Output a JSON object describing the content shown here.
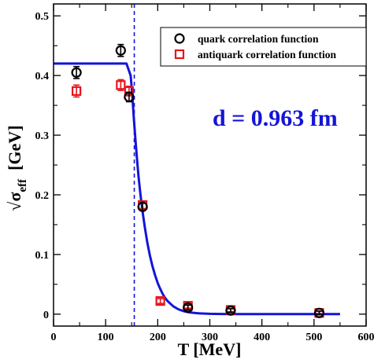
{
  "chart_data": {
    "type": "scatter",
    "xlabel": "T [MeV]",
    "ylabel": {
      "prefix": "√σ",
      "subscript": "eff",
      "suffix": "  [GeV]"
    },
    "xlim": [
      0,
      600
    ],
    "ylim": [
      -0.02,
      0.52
    ],
    "xticks": [
      0,
      100,
      200,
      300,
      400,
      500,
      600
    ],
    "yticks": [
      0,
      0.1,
      0.2,
      0.3,
      0.4,
      0.5
    ],
    "xtick_labels": [
      "0",
      "100",
      "200",
      "300",
      "400",
      "500",
      "600"
    ],
    "ytick_labels": [
      "0",
      "0.1",
      "0.2",
      "0.3",
      "0.4",
      "0.5"
    ],
    "grid": false,
    "legend_position": "top-right",
    "annotation": "d = 0.963 fm",
    "colors": {
      "quark": "#000000",
      "antiquark": "#e8141b",
      "fit": "#1414d8",
      "vline": "#1414d8"
    },
    "vertical_line_x": 155,
    "series": [
      {
        "name": "quark correlation function",
        "marker": "circle",
        "points": [
          {
            "x": 44,
            "y": 0.405,
            "err": 0.01
          },
          {
            "x": 129,
            "y": 0.442,
            "err": 0.01
          },
          {
            "x": 145,
            "y": 0.364,
            "err": 0.008
          },
          {
            "x": 171,
            "y": 0.18,
            "err": 0.006
          },
          {
            "x": 258,
            "y": 0.011,
            "err": 0.004
          },
          {
            "x": 340,
            "y": 0.006,
            "err": 0.003
          },
          {
            "x": 510,
            "y": 0.002,
            "err": 0.003
          }
        ]
      },
      {
        "name": "antiquark correlation function",
        "marker": "square",
        "points": [
          {
            "x": 44,
            "y": 0.374,
            "err": 0.01
          },
          {
            "x": 129,
            "y": 0.384,
            "err": 0.009
          },
          {
            "x": 145,
            "y": 0.374,
            "err": 0.008
          },
          {
            "x": 171,
            "y": 0.183,
            "err": 0.006
          },
          {
            "x": 205,
            "y": 0.022,
            "err": 0.004
          },
          {
            "x": 258,
            "y": 0.014,
            "err": 0.004
          },
          {
            "x": 340,
            "y": 0.007,
            "err": 0.003
          },
          {
            "x": 510,
            "y": 0.002,
            "err": 0.003
          }
        ]
      },
      {
        "name": "",
        "type": "line",
        "x": [
          0,
          140,
          148,
          151,
          154,
          157,
          160,
          163,
          166,
          169,
          172,
          175,
          180,
          185,
          190,
          195,
          200,
          205,
          210,
          215,
          220,
          230,
          240,
          250,
          260,
          270,
          280,
          300,
          320,
          350,
          400,
          450,
          500,
          550
        ],
        "y": [
          0.42,
          0.42,
          0.4,
          0.37,
          0.33,
          0.295,
          0.262,
          0.232,
          0.207,
          0.185,
          0.165,
          0.147,
          0.12,
          0.098,
          0.08,
          0.065,
          0.052,
          0.042,
          0.033,
          0.026,
          0.021,
          0.013,
          0.008,
          0.005,
          0.003,
          0.002,
          0.0013,
          0.0006,
          0.0003,
          0.0001,
          0,
          0,
          0,
          0
        ]
      }
    ]
  }
}
